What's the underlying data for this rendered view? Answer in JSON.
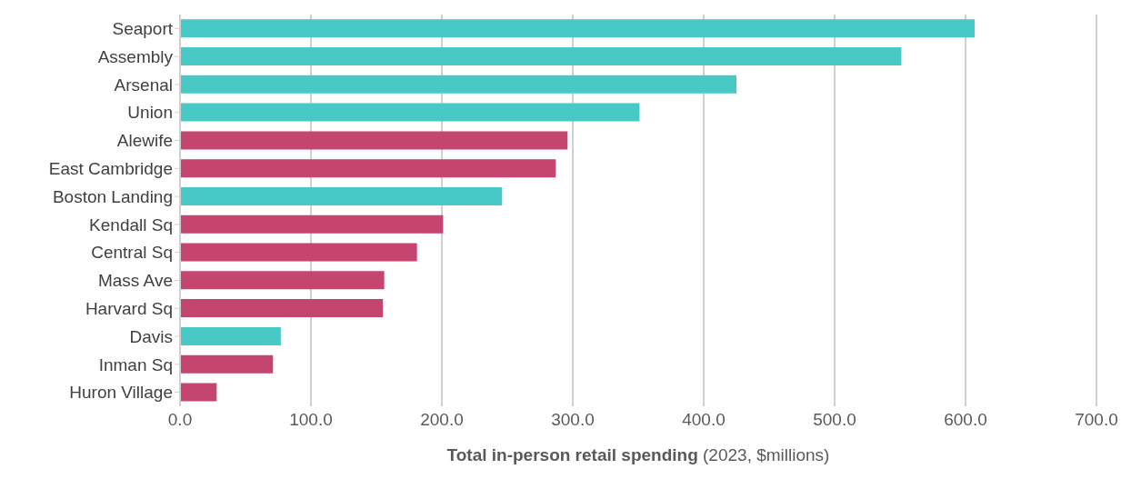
{
  "chart_data": {
    "type": "bar",
    "orientation": "horizontal",
    "xlabel": "Total in-person retail spending (2023, $millions)",
    "categories": [
      "Seaport",
      "Assembly",
      "Arsenal",
      "Union",
      "Alewife",
      "East Cambridge",
      "Boston Landing",
      "Kendall Sq",
      "Central Sq",
      "Mass Ave",
      "Harvard Sq",
      "Davis",
      "Inman Sq",
      "Huron Village"
    ],
    "values": [
      607,
      551,
      425,
      351,
      296,
      287,
      246,
      201,
      181,
      156,
      155,
      77,
      71,
      28
    ],
    "colors": [
      "#48c9c5",
      "#48c9c5",
      "#48c9c5",
      "#48c9c5",
      "#c4456e",
      "#c4456e",
      "#48c9c5",
      "#c4456e",
      "#c4456e",
      "#c4456e",
      "#c4456e",
      "#48c9c5",
      "#c4456e",
      "#c4456e"
    ],
    "xlim": [
      0,
      700
    ],
    "xticks": [
      {
        "value": 0,
        "label": "0.0"
      },
      {
        "value": 100,
        "label": "100.0"
      },
      {
        "value": 200,
        "label": "200.0"
      },
      {
        "value": 300,
        "label": "300.0"
      },
      {
        "value": 400,
        "label": "400.0"
      },
      {
        "value": 500,
        "label": "500.0"
      },
      {
        "value": 600,
        "label": "600.0"
      },
      {
        "value": 700,
        "label": "700.0"
      }
    ],
    "grid": "x",
    "legend": false
  }
}
